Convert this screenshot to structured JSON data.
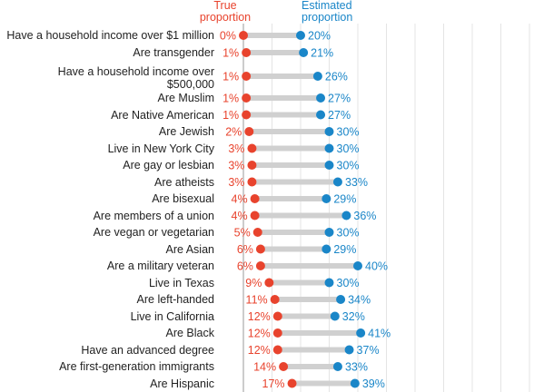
{
  "chart_data": {
    "type": "dumbbell",
    "categories": [
      "Have a household income over $1 million",
      "Are transgender",
      "Have a household income over\n$500,000",
      "Are Muslim",
      "Are Native American",
      "Are Jewish",
      "Live in New York City",
      "Are gay or lesbian",
      "Are atheists",
      "Are bisexual",
      "Are members of a union",
      "Are vegan or vegetarian",
      "Are Asian",
      "Are a military veteran",
      "Live in Texas",
      "Are left-handed",
      "Live in California",
      "Are Black",
      "Have an advanced degree",
      "Are first-generation immigrants",
      "Are Hispanic"
    ],
    "series": [
      {
        "name": "True proportion",
        "color": "#e8432d",
        "values": [
          0,
          1,
          1,
          1,
          1,
          2,
          3,
          3,
          3,
          4,
          4,
          5,
          6,
          6,
          9,
          11,
          12,
          12,
          12,
          14,
          17
        ],
        "value_labels": [
          "0%",
          "1%",
          "1%",
          "1%",
          "1%",
          "2%",
          "3%",
          "3%",
          "3%",
          "4%",
          "4%",
          "5%",
          "6%",
          "6%",
          "9%",
          "11%",
          "12%",
          "12%",
          "12%",
          "14%",
          "17%"
        ]
      },
      {
        "name": "Estimated proportion",
        "color": "#1a86c8",
        "values": [
          20,
          21,
          26,
          27,
          27,
          30,
          30,
          30,
          33,
          29,
          36,
          30,
          29,
          40,
          30,
          34,
          32,
          41,
          37,
          33,
          39
        ],
        "value_labels": [
          "20%",
          "21%",
          "26%",
          "27%",
          "27%",
          "30%",
          "30%",
          "30%",
          "33%",
          "29%",
          "36%",
          "30%",
          "29%",
          "40%",
          "30%",
          "34%",
          "32%",
          "41%",
          "37%",
          "33%",
          "39%"
        ]
      }
    ],
    "xlim": [
      0,
      100
    ],
    "xticks": [
      0,
      10,
      20,
      30,
      40,
      50,
      60,
      70,
      80,
      90,
      100
    ],
    "grid": true
  }
}
